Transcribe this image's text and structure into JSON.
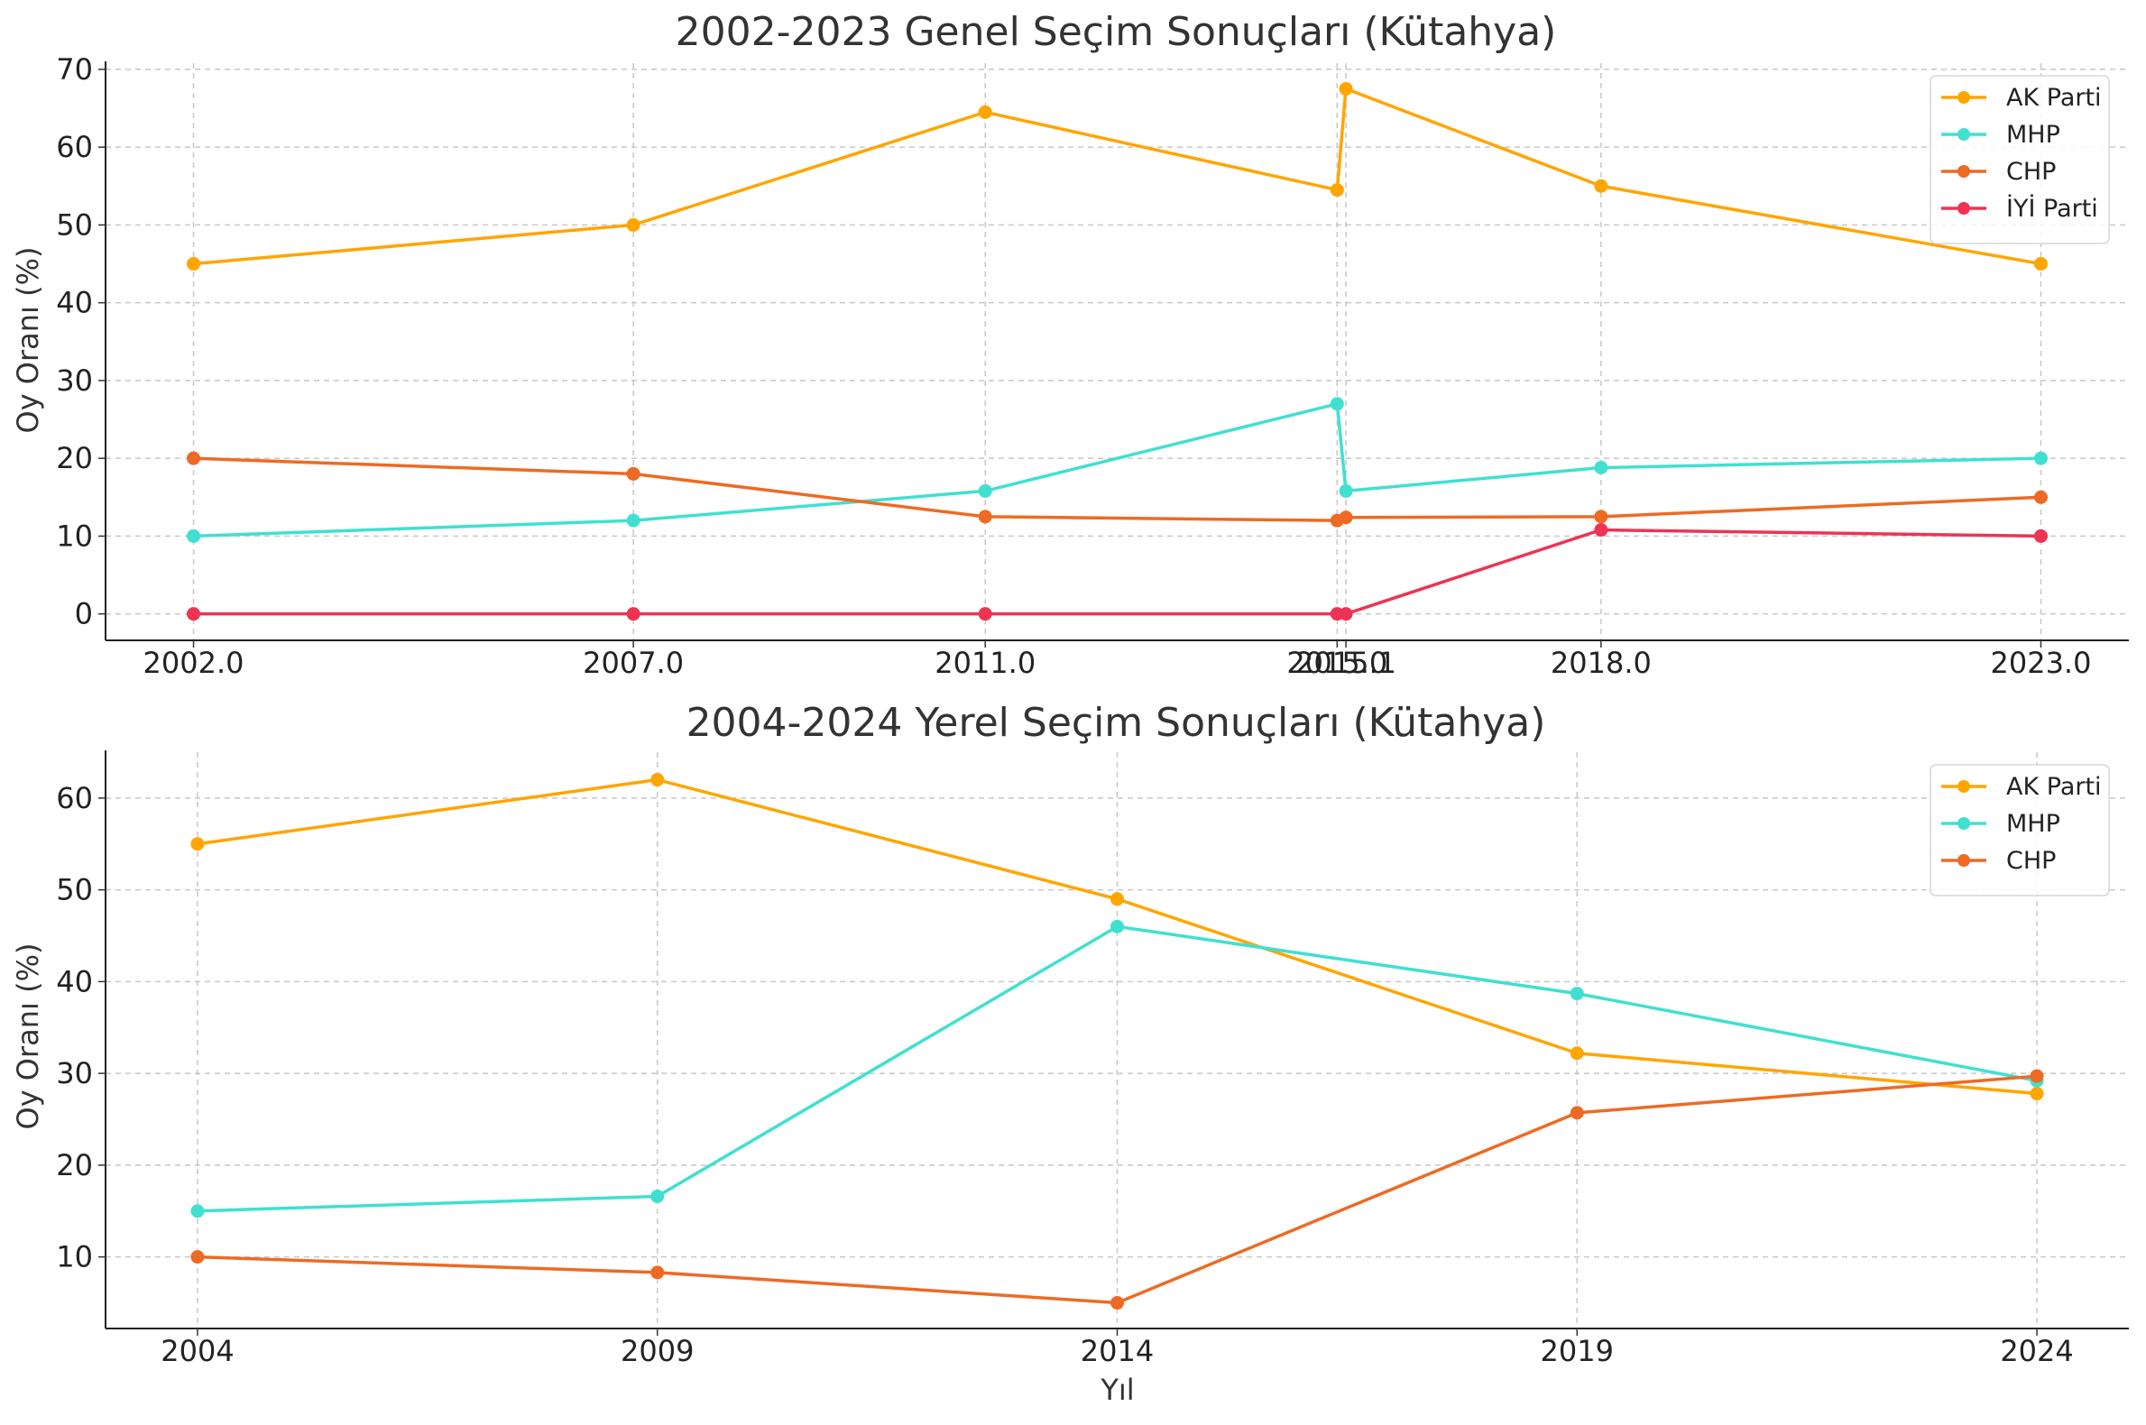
{
  "chart_data": [
    {
      "type": "line",
      "title": "2002-2023 Genel Seçim Sonuçları (Kütahya)",
      "xlabel": "",
      "ylabel": "Oy Oranı (%)",
      "x": [
        2002.0,
        2007.0,
        2011.0,
        2015.0,
        2015.1,
        2018.0,
        2023.0
      ],
      "xtick_labels": [
        "2002.0",
        "2007.0",
        "2011.0",
        "2015.0",
        "2015.1",
        "2018.0",
        "2023.0"
      ],
      "ytick_labels": [
        "0",
        "10",
        "20",
        "30",
        "40",
        "50",
        "60",
        "70"
      ],
      "xlim": [
        2001.0,
        2024.0
      ],
      "ylim": [
        -3.4,
        70.8
      ],
      "grid": true,
      "legend_position": "top-right",
      "series": [
        {
          "name": "AK Parti",
          "color": "#FFA500",
          "values": [
            45.0,
            50.0,
            64.5,
            54.5,
            67.5,
            55.0,
            45.0
          ]
        },
        {
          "name": "MHP",
          "color": "#40E0D0",
          "values": [
            10.0,
            12.0,
            15.8,
            27.0,
            15.8,
            18.8,
            20.0
          ]
        },
        {
          "name": "CHP",
          "color": "#EE6A24",
          "values": [
            20.0,
            18.0,
            12.5,
            12.0,
            12.4,
            12.5,
            15.0
          ]
        },
        {
          "name": "İYİ Parti",
          "color": "#EE3355",
          "values": [
            0.0,
            0.0,
            0.0,
            0.0,
            0.0,
            10.8,
            10.0
          ]
        }
      ]
    },
    {
      "type": "line",
      "title": "2004-2024 Yerel Seçim Sonuçları (Kütahya)",
      "xlabel": "Yıl",
      "ylabel": "Oy Oranı (%)",
      "x": [
        2004,
        2009,
        2014,
        2019,
        2024
      ],
      "xtick_labels": [
        "2004",
        "2009",
        "2014",
        "2019",
        "2024"
      ],
      "ytick_labels": [
        "10",
        "20",
        "30",
        "40",
        "50",
        "60"
      ],
      "xlim": [
        2003.0,
        2025.0
      ],
      "ylim": [
        2.2,
        65.0
      ],
      "grid": true,
      "legend_position": "top-right",
      "series": [
        {
          "name": "AK Parti",
          "color": "#FFA500",
          "values": [
            55.0,
            62.0,
            49.0,
            32.2,
            27.8
          ]
        },
        {
          "name": "MHP",
          "color": "#40E0D0",
          "values": [
            15.0,
            16.6,
            46.0,
            38.7,
            29.2
          ]
        },
        {
          "name": "CHP",
          "color": "#EE6A24",
          "values": [
            10.0,
            8.3,
            5.0,
            25.7,
            29.7
          ]
        }
      ]
    }
  ]
}
